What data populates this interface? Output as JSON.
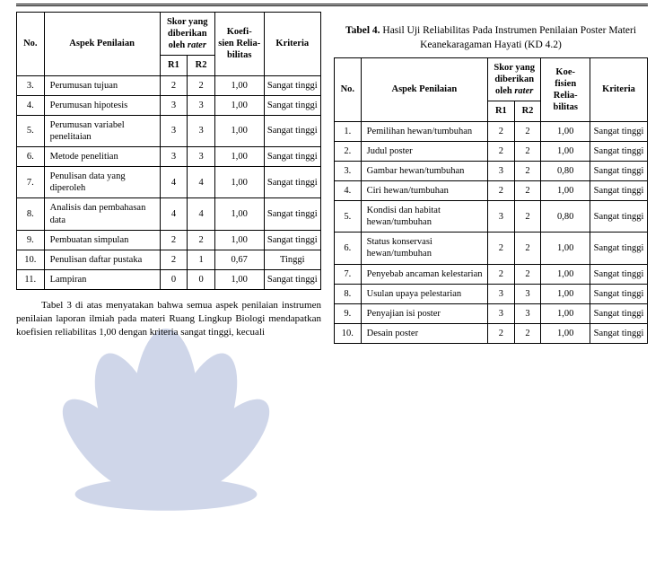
{
  "left_table": {
    "headers": {
      "no": "No.",
      "aspek": "Aspek Penilaian",
      "skor_group": "Skor yang diberikan oleh rater",
      "r1": "R1",
      "r2": "R2",
      "koef": "Koefi-\nsien Relia-\nbilitas",
      "kriteria": "Kriteria"
    },
    "col_widths": [
      "28px",
      "118px",
      "28px",
      "28px",
      "50px",
      "58px"
    ],
    "rows": [
      {
        "no": "3.",
        "aspek": "Perumusan tujuan",
        "r1": "2",
        "r2": "2",
        "koef": "1,00",
        "krit": "Sangat tinggi"
      },
      {
        "no": "4.",
        "aspek": "Perumusan hipotesis",
        "r1": "3",
        "r2": "3",
        "koef": "1,00",
        "krit": "Sangat tinggi"
      },
      {
        "no": "5.",
        "aspek": "Perumusan variabel penelitaian",
        "r1": "3",
        "r2": "3",
        "koef": "1,00",
        "krit": "Sangat tinggi"
      },
      {
        "no": "6.",
        "aspek": "Metode penelitian",
        "r1": "3",
        "r2": "3",
        "koef": "1,00",
        "krit": "Sangat tinggi"
      },
      {
        "no": "7.",
        "aspek": "Penulisan data yang diperoleh",
        "r1": "4",
        "r2": "4",
        "koef": "1,00",
        "krit": "Sangat tinggi"
      },
      {
        "no": "8.",
        "aspek": "Analisis dan pembahasan data",
        "r1": "4",
        "r2": "4",
        "koef": "1,00",
        "krit": "Sangat tinggi"
      },
      {
        "no": "9.",
        "aspek": "Pembuatan simpulan",
        "r1": "2",
        "r2": "2",
        "koef": "1,00",
        "krit": "Sangat tinggi"
      },
      {
        "no": "10.",
        "aspek": "Penulisan daftar pustaka",
        "r1": "2",
        "r2": "1",
        "koef": "0,67",
        "krit": "Tinggi"
      },
      {
        "no": "11.",
        "aspek": "Lampiran",
        "r1": "0",
        "r2": "0",
        "koef": "1,00",
        "krit": "Sangat tinggi"
      }
    ]
  },
  "left_paragraph": "Tabel 3 di atas menyatakan bahwa semua aspek penilaian instrumen penilaian laporan ilmiah pada materi Ruang Lingkup Biologi mendapatkan koefisien reliabilitas 1,00 dengan kriteria sangat tinggi, kecuali",
  "right_caption_line1": "Tabel  4.",
  "right_caption_rest": " Hasil Uji Reliabilitas Pada Instrumen Penilaian Poster Materi Keanekaragaman Hayati (KD 4.2)",
  "right_table": {
    "headers": {
      "no": "No.",
      "aspek": "Aspek Penilaian",
      "skor_group": "Skor yang diberikan oleh rater",
      "r1": "R1",
      "r2": "R2",
      "koef": "Koe-\nfisien Relia-\nbilitas",
      "kriteria": "Kriteria"
    },
    "col_widths": [
      "26px",
      "124px",
      "26px",
      "26px",
      "48px",
      "56px"
    ],
    "rows": [
      {
        "no": "1.",
        "aspek": "Pemilihan hewan/tumbuhan",
        "r1": "2",
        "r2": "2",
        "koef": "1,00",
        "krit": "Sangat tinggi"
      },
      {
        "no": "2.",
        "aspek": "Judul poster",
        "r1": "2",
        "r2": "2",
        "koef": "1,00",
        "krit": "Sangat tinggi"
      },
      {
        "no": "3.",
        "aspek": "Gambar hewan/tumbuhan",
        "r1": "3",
        "r2": "2",
        "koef": "0,80",
        "krit": "Sangat tinggi"
      },
      {
        "no": "4.",
        "aspek": "Ciri hewan/tumbuhan",
        "r1": "2",
        "r2": "2",
        "koef": "1,00",
        "krit": "Sangat tinggi"
      },
      {
        "no": "5.",
        "aspek": "Kondisi dan habitat hewan/tumbuhan",
        "r1": "3",
        "r2": "2",
        "koef": "0,80",
        "krit": "Sangat tinggi"
      },
      {
        "no": "6.",
        "aspek": "Status konservasi hewan/tumbuhan",
        "r1": "2",
        "r2": "2",
        "koef": "1,00",
        "krit": "Sangat tinggi"
      },
      {
        "no": "7.",
        "aspek": "Penyebab ancaman kelestarian",
        "r1": "2",
        "r2": "2",
        "koef": "1,00",
        "krit": "Sangat tinggi"
      },
      {
        "no": "8.",
        "aspek": "Usulan upaya pelestarian",
        "r1": "3",
        "r2": "3",
        "koef": "1,00",
        "krit": "Sangat tinggi"
      },
      {
        "no": "9.",
        "aspek": "Penyajian isi poster",
        "r1": "3",
        "r2": "3",
        "koef": "1,00",
        "krit": "Sangat tinggi"
      },
      {
        "no": "10.",
        "aspek": "Desain poster",
        "r1": "2",
        "r2": "2",
        "koef": "1,00",
        "krit": "Sangat tinggi"
      }
    ]
  },
  "colors": {
    "text": "#000000",
    "bg": "#ffffff",
    "watermark": "#2a4aa0"
  }
}
